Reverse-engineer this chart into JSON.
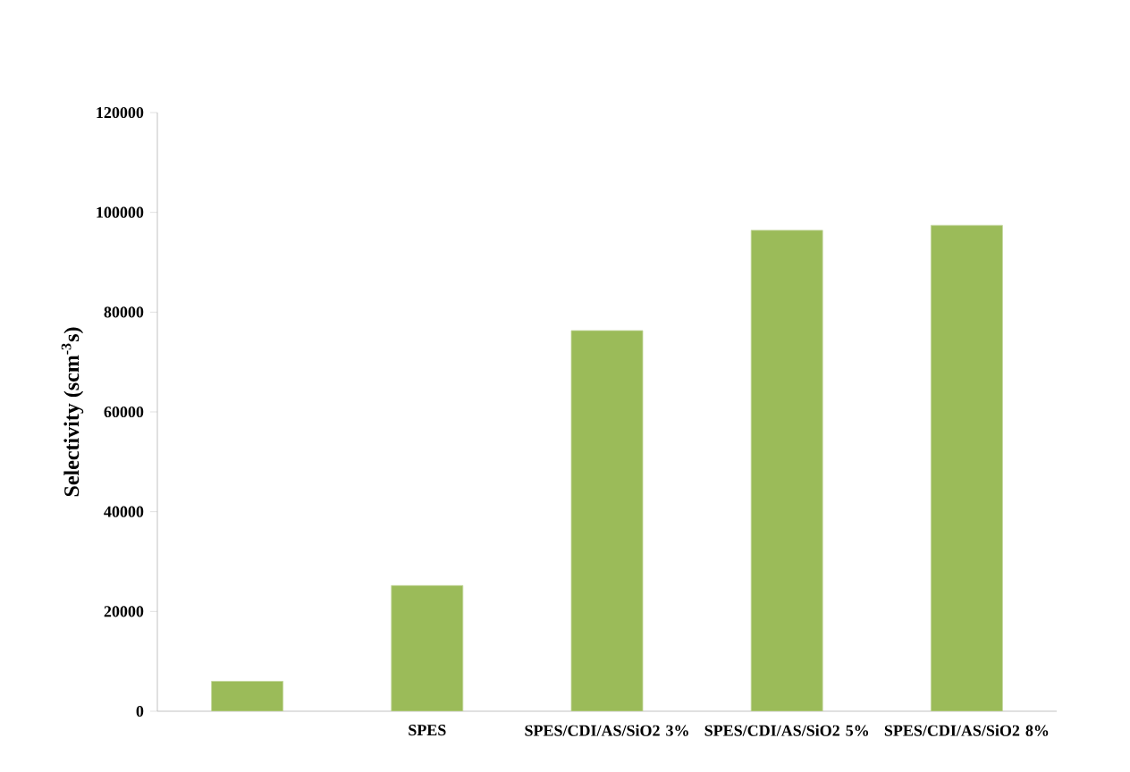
{
  "chart_data": {
    "type": "bar",
    "ylabel": "Selectivity (scm$^{-3}$s)",
    "categories": [
      null,
      "SPES",
      "SPES/CDI/AS/SiO2 3%",
      "SPES/CDI/AS/SiO2 5%",
      "SPES/CDI/AS/SiO2 8%"
    ],
    "values": [
      6000,
      25200,
      76300,
      96400,
      97400
    ],
    "color": "#9bbb59",
    "ylim": [
      0,
      120000
    ],
    "yticks": [
      0,
      20000,
      40000,
      60000,
      80000,
      100000,
      120000
    ],
    "grid": false
  }
}
